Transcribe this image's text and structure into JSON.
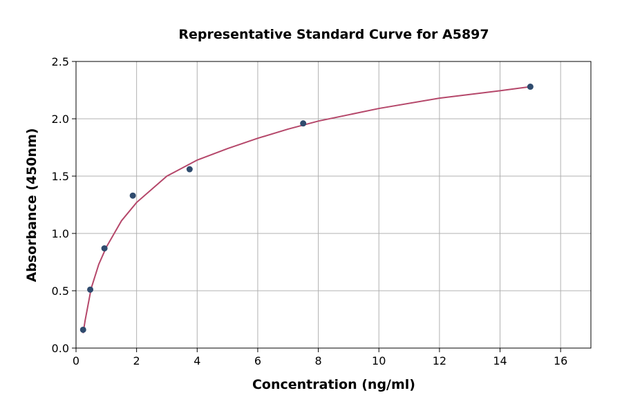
{
  "chart_data": {
    "type": "scatter",
    "title": "Representative Standard Curve for A5897",
    "x_label": "Concentration (ng/ml)",
    "y_label": "Absorbance (450nm)",
    "xlim": [
      0,
      17
    ],
    "ylim": [
      0,
      2.5
    ],
    "xticks": [
      0,
      2,
      4,
      6,
      8,
      10,
      12,
      14,
      16
    ],
    "yticks": [
      {
        "value": 0,
        "label": "0.0"
      },
      {
        "value": 0.5,
        "label": "0.5"
      },
      {
        "value": 1,
        "label": "1.0"
      },
      {
        "value": 1.5,
        "label": "1.5"
      },
      {
        "value": 2,
        "label": "2.0"
      },
      {
        "value": 2.5,
        "label": "2.5"
      }
    ],
    "grid": true,
    "points": {
      "color": "#2f4b6e",
      "x": [
        0.234,
        0.469,
        0.938,
        1.875,
        3.75,
        7.5,
        15
      ],
      "values": [
        0.16,
        0.51,
        0.87,
        1.33,
        1.56,
        1.96,
        2.28
      ]
    },
    "curve": {
      "color": "#b5476a",
      "x": [
        0.234,
        0.3,
        0.5,
        0.75,
        1,
        1.5,
        2,
        3,
        4,
        5,
        6,
        7,
        8,
        10,
        12,
        14,
        15
      ],
      "values": [
        0.13,
        0.24,
        0.52,
        0.73,
        0.88,
        1.11,
        1.27,
        1.5,
        1.64,
        1.74,
        1.83,
        1.91,
        1.98,
        2.09,
        2.18,
        2.245,
        2.28
      ]
    }
  }
}
